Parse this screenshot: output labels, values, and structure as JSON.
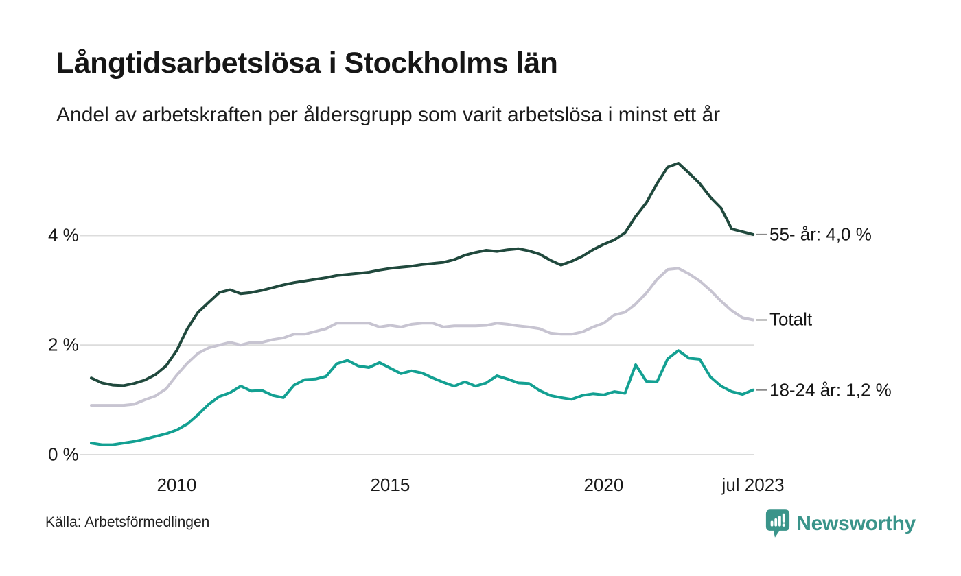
{
  "header": {
    "title": "Långtidsarbetslösa i Stockholms län",
    "subtitle": "Andel av arbetskraften per åldersgrupp som varit arbetslösa i minst ett år"
  },
  "footer": {
    "source": "Källa: Arbetsförmedlingen",
    "brand_name": "Newsworthy",
    "brand_color": "#3a948a"
  },
  "colors": {
    "grid": "#dcdcdc",
    "leader_dash": "#8a8a8a",
    "text": "#1a1a1a"
  },
  "chart_data": {
    "type": "line",
    "title": "Långtidsarbetslösa i Stockholms län",
    "subtitle": "Andel av arbetskraften per åldersgrupp som varit arbetslösa i minst ett år",
    "unit": "% av arbetskraften",
    "grid": true,
    "x_range": [
      2008.0,
      2023.5
    ],
    "y_range": [
      0,
      5.6
    ],
    "y_axis": {
      "ticks": [
        {
          "v": 0,
          "label": "0 %"
        },
        {
          "v": 2,
          "label": "2 %"
        },
        {
          "v": 4,
          "label": "4 %"
        }
      ]
    },
    "x_axis": {
      "ticks": [
        {
          "t": 2010.0,
          "label": "2010"
        },
        {
          "t": 2015.0,
          "label": "2015"
        },
        {
          "t": 2020.0,
          "label": "2020"
        },
        {
          "t": 2023.5,
          "label": "jul 2023"
        }
      ]
    },
    "x": [
      2008.0,
      2008.25,
      2008.5,
      2008.75,
      2009.0,
      2009.25,
      2009.5,
      2009.75,
      2010.0,
      2010.25,
      2010.5,
      2010.75,
      2011.0,
      2011.25,
      2011.5,
      2011.75,
      2012.0,
      2012.25,
      2012.5,
      2012.75,
      2013.0,
      2013.25,
      2013.5,
      2013.75,
      2014.0,
      2014.25,
      2014.5,
      2014.75,
      2015.0,
      2015.25,
      2015.5,
      2015.75,
      2016.0,
      2016.25,
      2016.5,
      2016.75,
      2017.0,
      2017.25,
      2017.5,
      2017.75,
      2018.0,
      2018.25,
      2018.5,
      2018.75,
      2019.0,
      2019.25,
      2019.5,
      2019.75,
      2020.0,
      2020.25,
      2020.5,
      2020.75,
      2021.0,
      2021.25,
      2021.5,
      2021.75,
      2022.0,
      2022.25,
      2022.5,
      2022.75,
      2023.0,
      2023.25,
      2023.5
    ],
    "series": [
      {
        "name": "Totalt",
        "end_label": "Totalt",
        "end_value_label": "Totalt",
        "color": "#c7c4d1",
        "values": [
          0.9,
          0.9,
          0.9,
          0.9,
          0.92,
          1.0,
          1.07,
          1.2,
          1.45,
          1.67,
          1.85,
          1.95,
          2.0,
          2.05,
          2.0,
          2.05,
          2.05,
          2.1,
          2.13,
          2.2,
          2.2,
          2.25,
          2.3,
          2.4,
          2.4,
          2.4,
          2.4,
          2.33,
          2.36,
          2.33,
          2.38,
          2.4,
          2.4,
          2.33,
          2.35,
          2.35,
          2.35,
          2.36,
          2.4,
          2.38,
          2.35,
          2.33,
          2.3,
          2.22,
          2.2,
          2.2,
          2.24,
          2.33,
          2.4,
          2.55,
          2.6,
          2.75,
          2.95,
          3.2,
          3.38,
          3.4,
          3.3,
          3.17,
          3.0,
          2.8,
          2.63,
          2.5,
          2.46
        ]
      },
      {
        "name": "18-24 år",
        "end_label": "18-24 år: 1,2 %",
        "end_value_label": "1,2 %",
        "color": "#13a092",
        "values": [
          0.21,
          0.18,
          0.18,
          0.21,
          0.24,
          0.28,
          0.33,
          0.38,
          0.45,
          0.56,
          0.73,
          0.92,
          1.06,
          1.13,
          1.25,
          1.16,
          1.17,
          1.08,
          1.04,
          1.27,
          1.37,
          1.38,
          1.43,
          1.66,
          1.72,
          1.62,
          1.59,
          1.68,
          1.58,
          1.48,
          1.53,
          1.49,
          1.4,
          1.32,
          1.25,
          1.33,
          1.25,
          1.31,
          1.44,
          1.38,
          1.31,
          1.3,
          1.17,
          1.08,
          1.04,
          1.01,
          1.08,
          1.11,
          1.09,
          1.15,
          1.12,
          1.64,
          1.34,
          1.33,
          1.75,
          1.9,
          1.76,
          1.74,
          1.42,
          1.25,
          1.15,
          1.1,
          1.18
        ]
      },
      {
        "name": "55- år",
        "end_label": "55- år: 4,0 %",
        "end_value_label": "4,0 %",
        "color": "#20493d",
        "values": [
          1.4,
          1.31,
          1.27,
          1.26,
          1.3,
          1.36,
          1.46,
          1.62,
          1.9,
          2.3,
          2.6,
          2.78,
          2.96,
          3.01,
          2.94,
          2.96,
          3.0,
          3.05,
          3.1,
          3.14,
          3.17,
          3.2,
          3.23,
          3.27,
          3.29,
          3.31,
          3.33,
          3.37,
          3.4,
          3.42,
          3.44,
          3.47,
          3.49,
          3.51,
          3.56,
          3.64,
          3.69,
          3.73,
          3.71,
          3.74,
          3.76,
          3.72,
          3.66,
          3.55,
          3.46,
          3.53,
          3.62,
          3.74,
          3.84,
          3.92,
          4.05,
          4.35,
          4.6,
          4.95,
          5.25,
          5.32,
          5.14,
          4.95,
          4.7,
          4.5,
          4.12,
          4.07,
          4.02
        ]
      }
    ]
  }
}
